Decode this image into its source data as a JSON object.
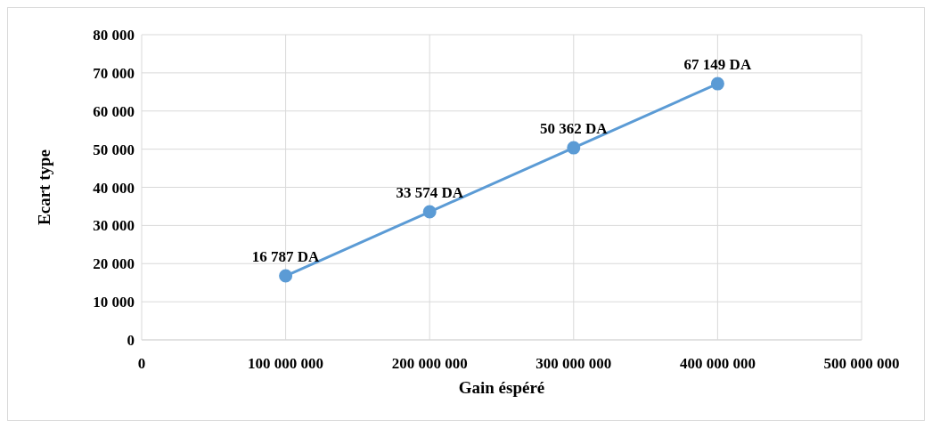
{
  "chart_data": {
    "type": "line",
    "xlabel": "Gain éspéré",
    "ylabel": "Ecart type",
    "x": [
      100000000,
      200000000,
      300000000,
      400000000
    ],
    "series": [
      {
        "color": "#5b9bd5",
        "values": [
          16787,
          33574,
          50362,
          67149
        ],
        "value_labels": [
          "16 787 DA",
          "33 574 DA",
          "50 362 DA",
          "67 149 DA"
        ]
      }
    ],
    "xlim": [
      0,
      500000000
    ],
    "xticks": [
      {
        "value": 0,
        "label": "0"
      },
      {
        "value": 100000000,
        "label": "100 000 000"
      },
      {
        "value": 200000000,
        "label": "200 000 000"
      },
      {
        "value": 300000000,
        "label": "300 000 000"
      },
      {
        "value": 400000000,
        "label": "400 000 000"
      },
      {
        "value": 500000000,
        "label": "500 000 000"
      }
    ],
    "ylim": [
      0,
      80000
    ],
    "yticks": [
      {
        "value": 0,
        "label": "0"
      },
      {
        "value": 10000,
        "label": "10 000"
      },
      {
        "value": 20000,
        "label": "20 000"
      },
      {
        "value": 30000,
        "label": "30 000"
      },
      {
        "value": 40000,
        "label": "40 000"
      },
      {
        "value": 50000,
        "label": "50 000"
      },
      {
        "value": 60000,
        "label": "60 000"
      },
      {
        "value": 70000,
        "label": "70 000"
      },
      {
        "value": 80000,
        "label": "80 000"
      }
    ],
    "grid": true,
    "marker": "circle",
    "line_style": "solid",
    "legend": false
  }
}
